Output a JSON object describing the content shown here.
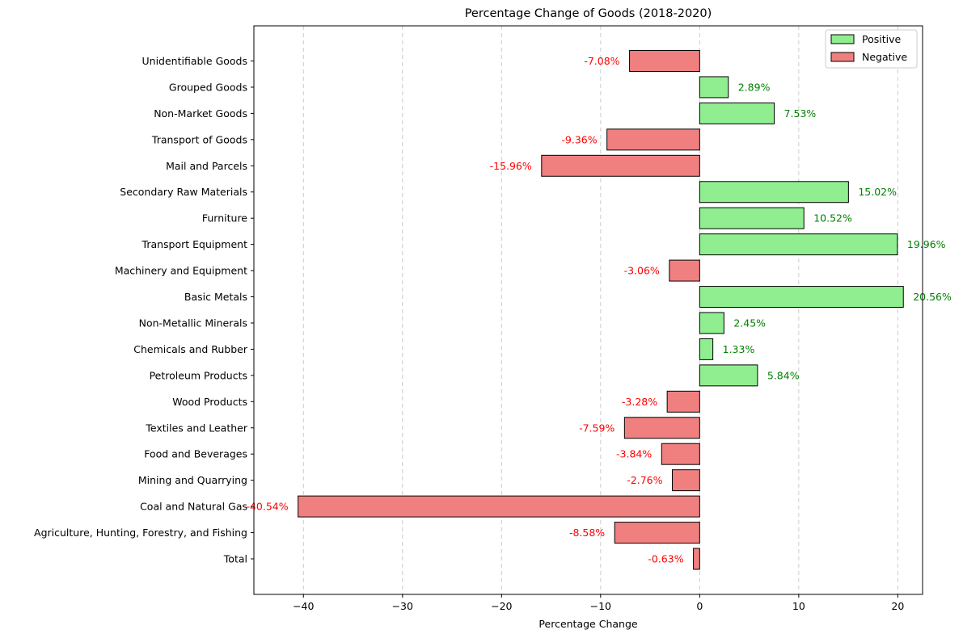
{
  "chart_data": {
    "type": "bar",
    "orientation": "horizontal",
    "title": "Percentage Change of Goods (2018-2020)",
    "xlabel": "Percentage Change",
    "ylabel": "",
    "xlim": [
      -45,
      22.5
    ],
    "xticks": [
      -40,
      -30,
      -20,
      -10,
      0,
      10,
      20
    ],
    "xtick_labels": [
      "−40",
      "−30",
      "−20",
      "−10",
      "0",
      "10",
      "20"
    ],
    "grid": "x-dashed",
    "categories": [
      "Total",
      "Agriculture, Hunting, Forestry, and Fishing",
      "Coal and Natural Gas",
      "Mining and Quarrying",
      "Food and Beverages",
      "Textiles and Leather",
      "Wood Products",
      "Petroleum Products",
      "Chemicals and Rubber",
      "Non-Metallic Minerals",
      "Basic Metals",
      "Machinery and Equipment",
      "Transport Equipment",
      "Furniture",
      "Secondary Raw Materials",
      "Mail and Parcels",
      "Transport of Goods",
      "Non-Market Goods",
      "Grouped Goods",
      "Unidentifiable Goods"
    ],
    "values": [
      -0.63,
      -8.58,
      -40.54,
      -2.76,
      -3.84,
      -7.59,
      -3.28,
      5.84,
      1.33,
      2.45,
      20.56,
      -3.06,
      19.96,
      10.52,
      15.02,
      -15.96,
      -9.36,
      7.53,
      2.89,
      -7.08
    ],
    "data_labels": [
      "-0.63%",
      "-8.58%",
      "-40.54%",
      "-2.76%",
      "-3.84%",
      "-7.59%",
      "-3.28%",
      "5.84%",
      "1.33%",
      "2.45%",
      "20.56%",
      "-3.06%",
      "19.96%",
      "10.52%",
      "15.02%",
      "-15.96%",
      "-9.36%",
      "7.53%",
      "2.89%",
      "-7.08%"
    ],
    "legend": {
      "placement": "top-right",
      "entries": [
        {
          "label": "Positive",
          "color": "#90ee90"
        },
        {
          "label": "Negative",
          "color": "#f08080"
        }
      ]
    },
    "colors": {
      "positive_bar": "#90ee90",
      "negative_bar": "#f08080",
      "positive_label": "#008000",
      "negative_label": "#ff0000",
      "edge": "#000000"
    }
  }
}
